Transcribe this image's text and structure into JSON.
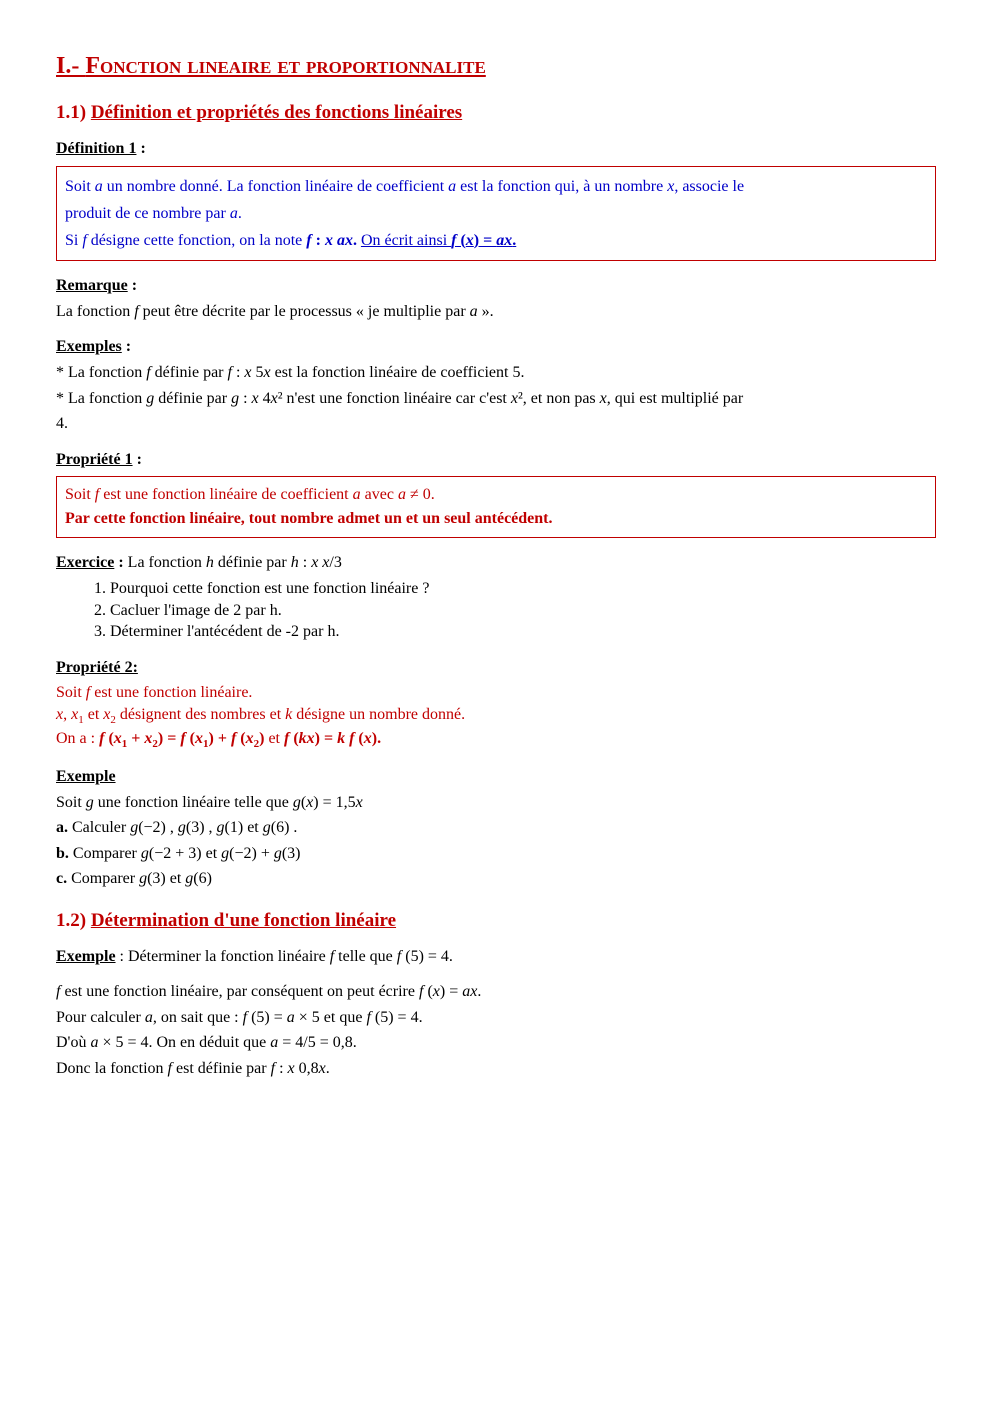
{
  "colors": {
    "accent": "#c00000",
    "blue": "#0000c8",
    "text": "#000000",
    "background": "#ffffff",
    "box_border": "#c00000"
  },
  "typography": {
    "body_family": "Times New Roman",
    "body_size_pt": 12,
    "h1_size_pt": 18,
    "h2_size_pt": 14
  },
  "h1": {
    "prefix": "I.- ",
    "rest": "Fonction lineaire et proportionnalite"
  },
  "s11": {
    "heading_num": "1.1)   ",
    "heading_text": "Définition et propriétés des fonctions linéaires",
    "def1_label": "Définition 1",
    "def1_colon": " :",
    "def1_box": {
      "l1a": "Soit ",
      "l1b": "a",
      "l1c": "  un nombre donné. La fonction linéaire de coefficient ",
      "l1d": "a",
      "l1e": " est la fonction qui, à un nombre ",
      "l1f": "x",
      "l1g": ", associe le",
      "l2a": "produit de ce nombre par ",
      "l2b": "a",
      "l2c": ".",
      "l3a": "Si ",
      "l3b": "f",
      "l3c": " désigne cette fonction, on la note ",
      "l3d": "f",
      "l3e": " : ",
      "l3f": "x",
      "l3g": "    ",
      "l3h": "ax",
      "l3i": ". ",
      "l3j": "On écrit ainsi ",
      "l3k": "f",
      "l3l": " (",
      "l3m": "x",
      "l3n": ") = ",
      "l3o": "ax",
      "l3p": "."
    },
    "rem_label": "Remarque",
    "rem_colon": " :",
    "rem_a": "La fonction ",
    "rem_b": "f",
    "rem_c": " peut être décrite par le processus « je multiplie par ",
    "rem_d": "a",
    "rem_e": " ».",
    "ex_label": "Exemples",
    "ex_colon": " :",
    "ex1a": "* La fonction ",
    "ex1b": "f",
    "ex1c": " définie par ",
    "ex1d": "f",
    "ex1e": " : ",
    "ex1f": "x",
    "ex1g": "    5",
    "ex1h": "x",
    "ex1i": " est la fonction linéaire de coefficient 5.",
    "ex2a": "* La fonction ",
    "ex2b": "g",
    "ex2c": " définie par ",
    "ex2d": "g",
    "ex2e": " : ",
    "ex2f": "x",
    "ex2g": "    4",
    "ex2h": "x",
    "ex2i": "² n'est une fonction linéaire car c'est ",
    "ex2j": "x",
    "ex2k": "², et non pas ",
    "ex2l": "x",
    "ex2m": ", qui est multiplié par",
    "ex2n": "4.",
    "prop1_label": "Propriété 1",
    "prop1_colon": " :",
    "prop1_box": {
      "l1a": "Soit ",
      "l1b": "f",
      "l1c": " est une fonction linéaire de coefficient ",
      "l1d": "a",
      "l1e": " avec ",
      "l1f": "a",
      "l1g": " ≠ 0.",
      "l2": "Par cette fonction linéaire, tout nombre admet un et un seul antécédent."
    },
    "exo_label": "Exercice",
    "exo_colon": " : ",
    "exo_a": "La fonction ",
    "exo_b": "h",
    "exo_c": " définie par ",
    "exo_d": "h",
    "exo_e": " : ",
    "exo_f": "x",
    "exo_g": "    ",
    "exo_h": "x",
    "exo_i": "/3",
    "exo_items": [
      "Pourquoi cette fonction est une fonction linéaire ?",
      "Cacluer l'image de 2 par h.",
      "Déterminer l'antécédent de -2 par h."
    ],
    "prop2_label": "Propriété 2:",
    "prop2": {
      "l1a": "Soit ",
      "l1b": "f",
      "l1c": " est une fonction linéaire.",
      "l2a": "x",
      "l2b": ", ",
      "l2c": "x",
      "l2d": "1",
      "l2e": " et ",
      "l2f": "x",
      "l2g": "2",
      "l2h": " désignent des nombres et ",
      "l2i": "k",
      "l2j": " désigne un nombre donné.",
      "l3a": "On a : ",
      "l3b": "f",
      "l3c": " (",
      "l3d": "x",
      "l3e": "1",
      "l3f": " + ",
      "l3g": "x",
      "l3h": "2",
      "l3i": ") = ",
      "l3j": "f",
      "l3k": " (",
      "l3l": "x",
      "l3m": "1",
      "l3n": ") + ",
      "l3o": "f",
      "l3p": " (",
      "l3q": "x",
      "l3r": "2",
      "l3s": ")",
      "l3t": " et ",
      "l3u": "f",
      "l3v": " (",
      "l3w": "kx",
      "l3x": ") = ",
      "l3y": "k f",
      "l3z": " (",
      "l3z1": "x",
      "l3z2": ")."
    },
    "exmp_label": "Exemple",
    "exmp": {
      "l1a": "Soit ",
      "l1b": "g",
      "l1c": "  une fonction linéaire telle que  ",
      "l1d": "g",
      "l1e": "(",
      "l1f": "x",
      "l1g": ") = 1,5",
      "l1h": "x",
      "aa": "a.",
      "a1": " Calculer  ",
      "a2": "g",
      "a3": "(−2) ,  ",
      "a4": "g",
      "a5": "(3) ,  ",
      "a6": "g",
      "a7": "(1) et ",
      "a8": "g",
      "a9": "(6) .",
      "bb": "b.",
      "b1": " Comparer  ",
      "b2": "g",
      "b3": "(−2 + 3)  et ",
      "b4": "g",
      "b5": "(−2) + ",
      "b6": "g",
      "b7": "(3)",
      "cc": "c.",
      "c1": "  Comparer  ",
      "c2": "g",
      "c3": "(3)  et  ",
      "c4": "g",
      "c5": "(6)"
    }
  },
  "s12": {
    "heading_num": "1.2) ",
    "heading_text": "Détermination d'une fonction linéaire",
    "ex_label": "Exemple",
    "ex_colon": " :  ",
    "ex_a": "Déterminer la fonction linéaire ",
    "ex_b": "f",
    "ex_c": " telle que ",
    "ex_d": "f",
    "ex_e": " (5) = 4.",
    "p1a": "f",
    "p1b": " est une fonction linéaire, par conséquent on peut écrire ",
    "p1c": "f",
    "p1d": " (",
    "p1e": "x",
    "p1f": ") = ",
    "p1g": "ax",
    "p1h": ".",
    "p2a": "Pour calculer ",
    "p2b": "a",
    "p2c": ", on sait que : ",
    "p2d": "f",
    "p2e": " (5) = ",
    "p2f": "a",
    "p2g": " × 5 et que ",
    "p2h": "f",
    "p2i": " (5) = 4.",
    "p3a": "D'où ",
    "p3b": "a",
    "p3c": " × 5 = 4. On en déduit que ",
    "p3d": "a",
    "p3e": " = 4/5 = 0,8.",
    "p4a": "Donc la fonction ",
    "p4b": "f",
    "p4c": " est définie par ",
    "p4d": "f",
    "p4e": " : ",
    "p4f": "x",
    "p4g": "    0,8",
    "p4h": "x",
    "p4i": "."
  }
}
